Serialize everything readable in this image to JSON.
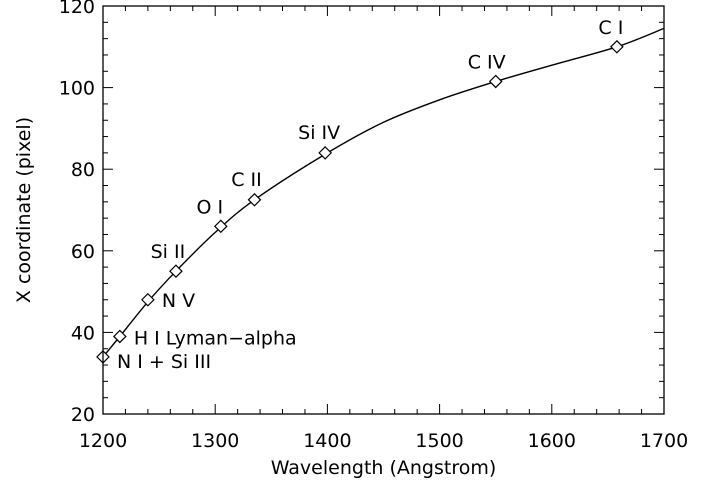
{
  "chart_data": {
    "type": "line",
    "title": "",
    "xlabel": "Wavelength (Angstrom)",
    "ylabel": "X coordinate (pixel)",
    "xlim": [
      1200,
      1700
    ],
    "ylim": [
      20,
      120
    ],
    "x_ticks": [
      1200,
      1300,
      1400,
      1500,
      1600,
      1700
    ],
    "y_ticks": [
      20,
      40,
      60,
      80,
      100,
      120
    ],
    "x_ticks_text": [
      "1200",
      "1300",
      "1400",
      "1500",
      "1600",
      "1700"
    ],
    "y_ticks_text": [
      "20",
      "40",
      "60",
      "80",
      "100",
      "120"
    ],
    "grid": false,
    "legend": "none",
    "curve": {
      "x": [
        1200,
        1215,
        1240,
        1265,
        1300,
        1335,
        1400,
        1450,
        1500,
        1550,
        1600,
        1658,
        1700
      ],
      "y": [
        34,
        39,
        47.5,
        55,
        64.5,
        72.5,
        84,
        91.5,
        97,
        101.5,
        105.5,
        110,
        114.5
      ]
    },
    "points": [
      {
        "x": 1200,
        "y": 34,
        "label": "N I + Si III"
      },
      {
        "x": 1215,
        "y": 39,
        "label": "H I Lyman−alpha"
      },
      {
        "x": 1240,
        "y": 48,
        "label": "N V"
      },
      {
        "x": 1265,
        "y": 55,
        "label": "Si II"
      },
      {
        "x": 1305,
        "y": 66,
        "label": "O I"
      },
      {
        "x": 1335,
        "y": 72.5,
        "label": "C II"
      },
      {
        "x": 1398,
        "y": 84,
        "label": "Si IV"
      },
      {
        "x": 1550,
        "y": 101.5,
        "label": "C IV"
      },
      {
        "x": 1658,
        "y": 110,
        "label": "C I"
      }
    ]
  }
}
